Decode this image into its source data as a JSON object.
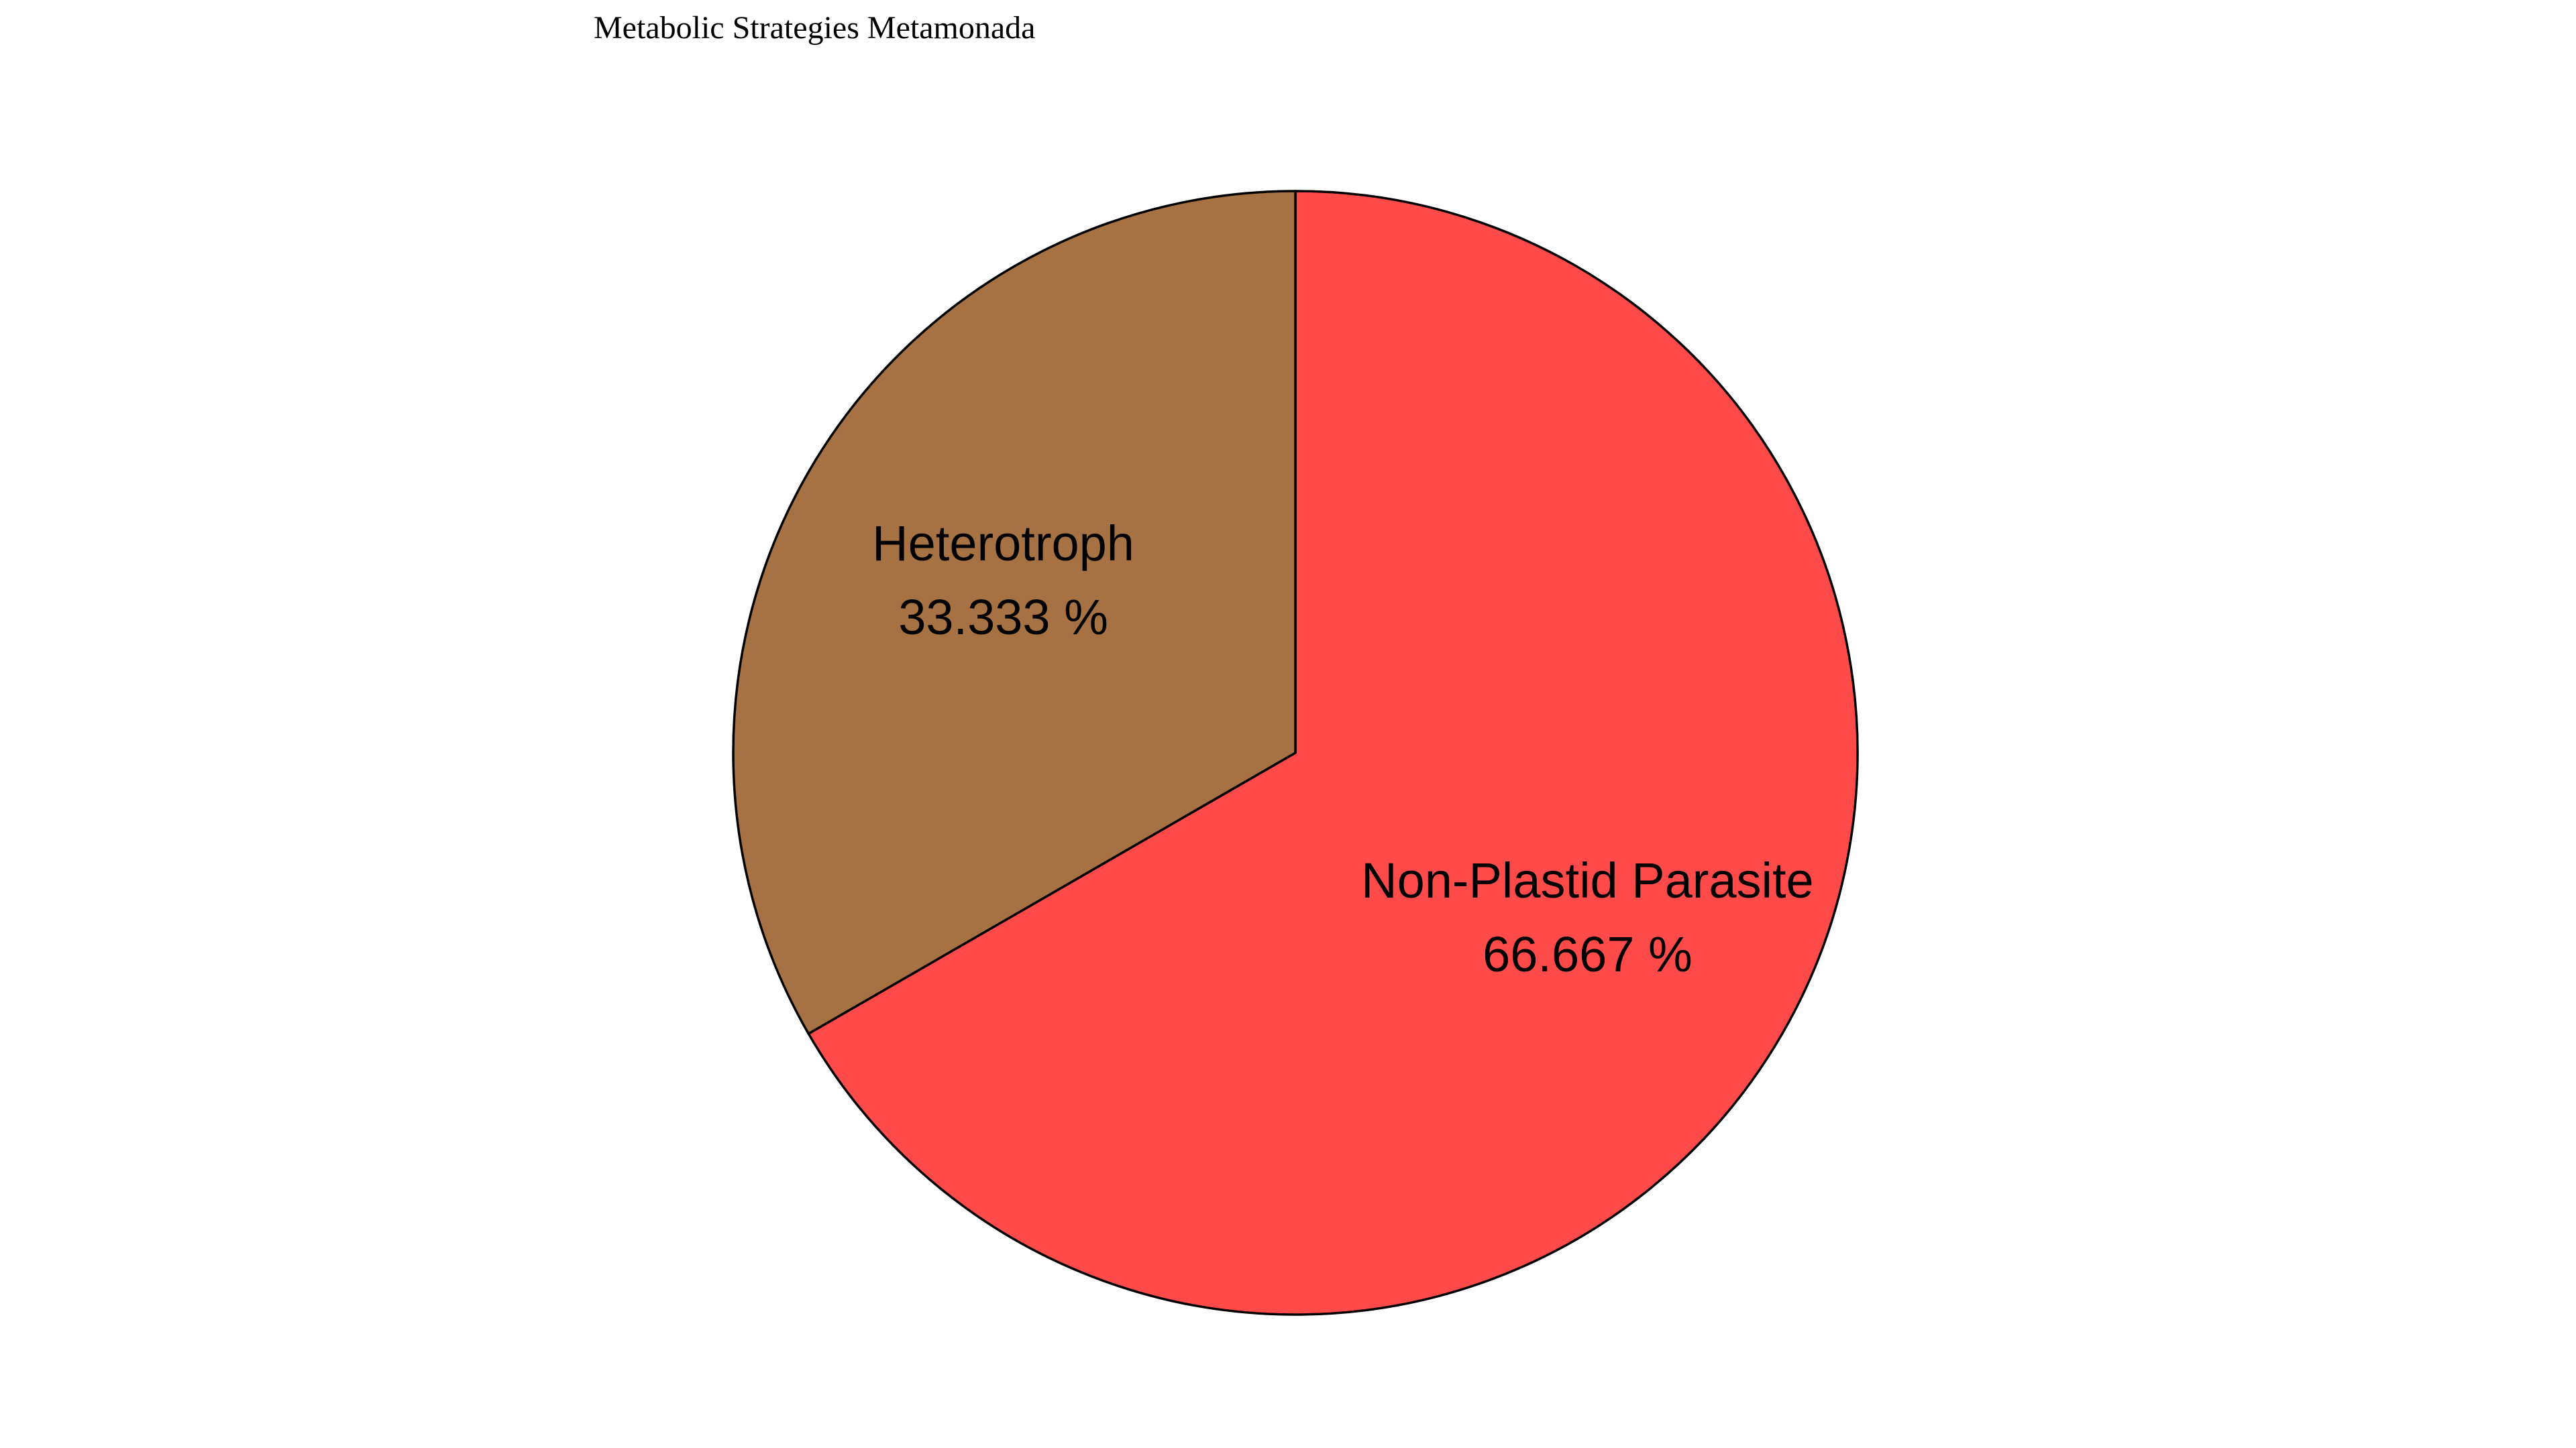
{
  "title": "Metabolic Strategies Metamonada",
  "chart_data": {
    "type": "pie",
    "title": "Metabolic Strategies Metamonada",
    "start_angle_deg": 90,
    "direction": "clockwise",
    "slices": [
      {
        "name": "Non-Plastid Parasite",
        "value": 66.667,
        "value_label": "66.667 %",
        "color": "#FF4A4A"
      },
      {
        "name": "Heterotroph",
        "value": 33.333,
        "value_label": "33.333 %",
        "color": "#A67243"
      }
    ],
    "edge_color": "#000000"
  }
}
